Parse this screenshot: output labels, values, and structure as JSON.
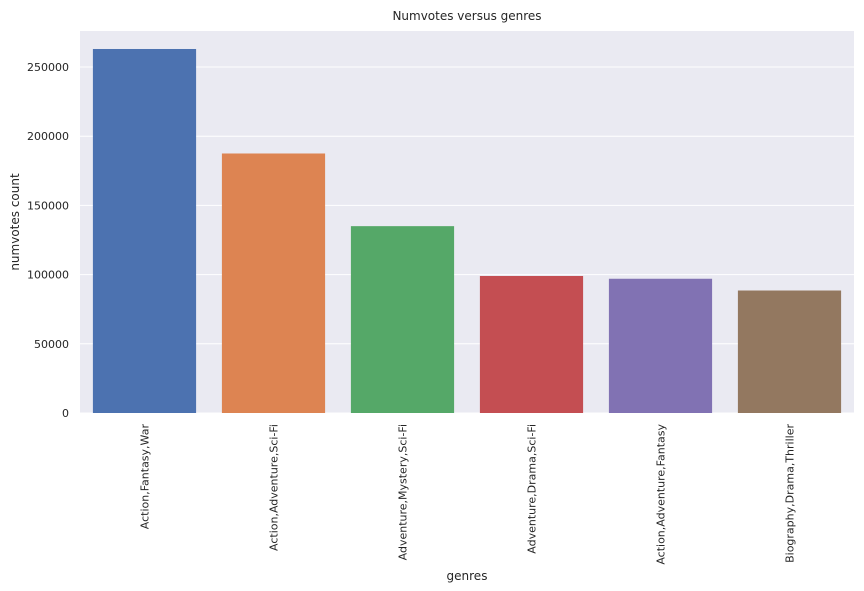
{
  "chart_data": {
    "type": "bar",
    "title": "Numvotes versus genres",
    "xlabel": "genres",
    "ylabel": "numvotes count",
    "categories": [
      "Action,Fantasy,War",
      "Action,Adventure,Sci-Fi",
      "Adventure,Mystery,Sci-Fi",
      "Adventure,Drama,Sci-Fi",
      "Action,Adventure,Fantasy",
      "Biography,Drama,Thriller"
    ],
    "values": [
      263000,
      187500,
      135000,
      99000,
      97000,
      88500
    ],
    "colors": [
      "#4c72b0",
      "#dd8452",
      "#55a868",
      "#c44e52",
      "#8172b3",
      "#937860"
    ],
    "ylim": [
      0,
      276000
    ],
    "yticks": [
      0,
      50000,
      100000,
      150000,
      200000,
      250000
    ],
    "ytick_labels": [
      "0",
      "50000",
      "100000",
      "150000",
      "200000",
      "250000"
    ],
    "grid": true,
    "background": "#eaeaf2",
    "grid_color": "#ffffff"
  }
}
